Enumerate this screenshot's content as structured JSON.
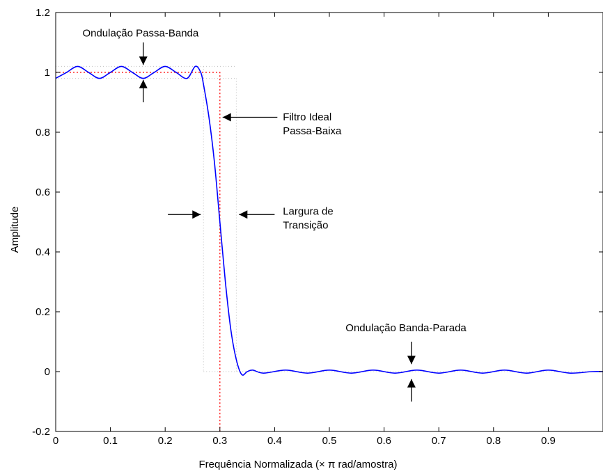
{
  "chart_data": {
    "type": "line",
    "title": "",
    "xlabel": "Frequência Normalizada (× π rad/amostra)",
    "ylabel": "Amplitude",
    "xlim": [
      0,
      1
    ],
    "ylim": [
      -0.2,
      1.2
    ],
    "x_ticks": [
      0,
      0.1,
      0.2,
      0.3,
      0.4,
      0.5,
      0.6,
      0.7,
      0.8,
      0.9
    ],
    "x_tick_labels": [
      "0",
      "0.1",
      "0.2",
      "0.3",
      "0.4",
      "0.5",
      "0.6",
      "0.7",
      "0.8",
      "0.9"
    ],
    "y_ticks": [
      -0.2,
      0,
      0.2,
      0.4,
      0.6,
      0.8,
      1,
      1.2
    ],
    "y_tick_labels": [
      "-0.2",
      "0",
      "0.2",
      "0.4",
      "0.6",
      "0.8",
      "1",
      "1.2"
    ],
    "grid": false,
    "colors": {
      "response": "#0000ff",
      "ideal": "#ff0000",
      "guides": "#c0c0c0",
      "axis": "#000000"
    },
    "series": [
      {
        "style": "solid",
        "x": [
          0,
          0.02,
          0.04,
          0.06,
          0.08,
          0.1,
          0.12,
          0.14,
          0.16,
          0.18,
          0.2,
          0.22,
          0.24,
          0.255,
          0.265,
          0.27,
          0.28,
          0.29,
          0.3,
          0.31,
          0.32,
          0.33,
          0.34,
          0.35,
          0.36,
          0.38,
          0.42,
          0.46,
          0.5,
          0.54,
          0.58,
          0.62,
          0.66,
          0.7,
          0.74,
          0.78,
          0.82,
          0.86,
          0.9,
          0.94,
          0.98,
          1.0
        ],
        "y": [
          0.98,
          1.0,
          1.02,
          1.0,
          0.98,
          1.0,
          1.02,
          1.0,
          0.98,
          1.0,
          1.02,
          1.0,
          0.98,
          1.02,
          1.0,
          0.96,
          0.85,
          0.7,
          0.5,
          0.3,
          0.14,
          0.04,
          -0.01,
          0.0,
          0.005,
          -0.005,
          0.005,
          -0.005,
          0.005,
          -0.005,
          0.005,
          -0.005,
          0.005,
          -0.005,
          0.005,
          -0.005,
          0.005,
          -0.005,
          0.005,
          -0.005,
          0.0,
          0.0
        ]
      },
      {
        "style": "dotted",
        "x": [
          0,
          0.3,
          0.3
        ],
        "y": [
          1,
          1,
          -0.2
        ]
      }
    ],
    "guide_lines": {
      "passband_upper": 1.02,
      "passband_lower": 0.98,
      "passband_edge": 0.27,
      "stopband_edge": 0.33,
      "stopband_level": 0
    },
    "annotations": [
      {
        "id": "passband-ripple",
        "lines": [
          "Ondulação Passa-Banda"
        ],
        "x": 0.155,
        "y": 1.12
      },
      {
        "id": "ideal-filter",
        "lines": [
          "Filtro Ideal",
          "Passa-Baixa"
        ],
        "x": 0.415,
        "y": 0.84
      },
      {
        "id": "transition-width",
        "lines": [
          "Largura de",
          "Transição"
        ],
        "x": 0.415,
        "y": 0.525
      },
      {
        "id": "stopband-ripple",
        "lines": [
          "Ondulação Banda-Parada"
        ],
        "x": 0.64,
        "y": 0.135
      }
    ]
  }
}
